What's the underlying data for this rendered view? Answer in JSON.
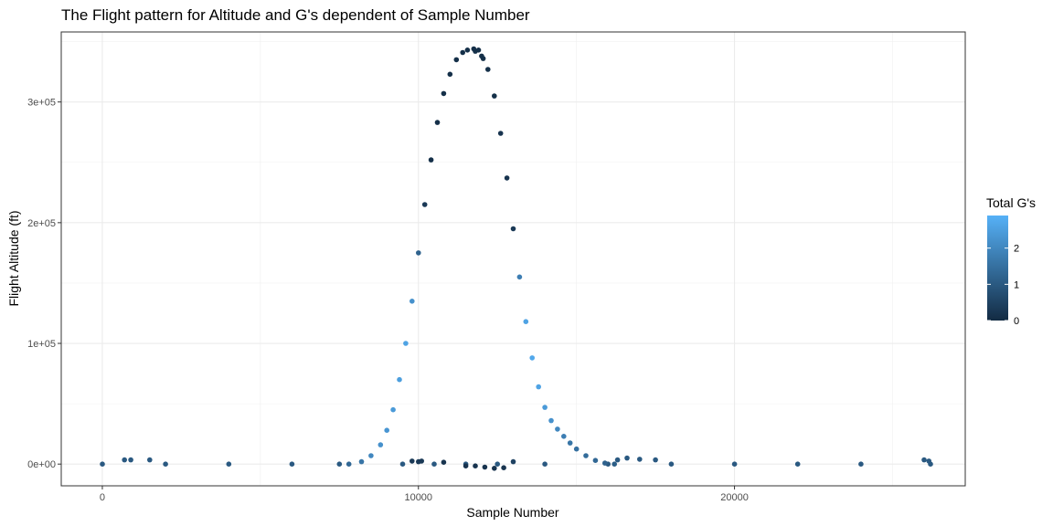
{
  "chart_data": {
    "type": "scatter",
    "title": "The Flight pattern for Altitude and G's dependent of Sample Number",
    "xlabel": "Sample Number",
    "ylabel": "Flight Altitude (ft)",
    "xlim": [
      -1300,
      27300
    ],
    "ylim": [
      -18000,
      358000
    ],
    "x_ticks": [
      0,
      10000,
      20000
    ],
    "x_tick_labels": [
      "0",
      "10000",
      "20000"
    ],
    "y_ticks": [
      0,
      100000,
      200000,
      300000
    ],
    "y_tick_labels": [
      "0e+00",
      "1e+05",
      "2e+05",
      "3e+05"
    ],
    "grid": true,
    "legend": {
      "title": "Total G's",
      "position": "right",
      "breaks": [
        0,
        1,
        2
      ],
      "break_labels": [
        "0",
        "1",
        "2"
      ],
      "range": [
        0,
        2.9
      ],
      "color_low": "#132b43",
      "color_high": "#56b1f7"
    },
    "series": [
      {
        "description": "ground",
        "x": [
          0,
          2000,
          4000,
          6000,
          7500,
          9500,
          10500,
          11500,
          12500,
          14000,
          16000,
          18000,
          20000,
          22000,
          24000,
          26200
        ],
        "y": [
          0,
          0,
          0,
          0,
          0,
          0,
          0,
          0,
          0,
          0,
          0,
          0,
          0,
          0,
          0,
          0
        ],
        "g": [
          1,
          1,
          1,
          1,
          1,
          1,
          1,
          1,
          1,
          1,
          1,
          1,
          1,
          1,
          1,
          1
        ]
      },
      {
        "description": "ascent",
        "x": [
          7800,
          8200,
          8500,
          8800,
          9000,
          9200,
          9400,
          9600,
          9800,
          10000,
          10200,
          10400,
          10600,
          10800,
          11000,
          11200,
          11400,
          11550
        ],
        "y": [
          0,
          2000,
          7000,
          16000,
          28000,
          45000,
          70000,
          100000,
          135000,
          175000,
          215000,
          252000,
          283000,
          307000,
          323000,
          335000,
          341000,
          343000
        ],
        "g": [
          1.3,
          1.6,
          2.0,
          2.2,
          2.3,
          2.4,
          2.5,
          2.6,
          2.2,
          1.2,
          0.3,
          0.1,
          0.1,
          0.1,
          0.1,
          0.1,
          0.1,
          0.1
        ]
      },
      {
        "description": "descent",
        "x": [
          11800,
          12000,
          12200,
          12400,
          12600,
          12800,
          13000,
          13200,
          13400,
          13600,
          13800,
          14000,
          14200,
          14400,
          14600,
          14800,
          15000,
          15300,
          15600,
          15900,
          16200
        ],
        "y": [
          342000,
          338000,
          327000,
          305000,
          274000,
          237000,
          195000,
          155000,
          118000,
          88000,
          64000,
          47000,
          36000,
          29000,
          23000,
          17500,
          12500,
          7000,
          3000,
          800,
          0
        ],
        "g": [
          0.1,
          0.1,
          0.1,
          0.1,
          0.2,
          0.2,
          0.3,
          1.8,
          2.6,
          2.7,
          2.6,
          2.4,
          2.2,
          2.0,
          1.8,
          1.6,
          1.5,
          1.4,
          1.3,
          1.2,
          1.1
        ]
      },
      {
        "description": "low scatter",
        "x": [
          700,
          900,
          1500,
          9800,
          10000,
          10100,
          10800,
          11500,
          11800,
          12100,
          12400,
          12700,
          13000,
          16300,
          16600,
          17000,
          17500,
          26000,
          26150
        ],
        "y": [
          3500,
          3500,
          3500,
          2500,
          2000,
          2500,
          1500,
          -1500,
          -1500,
          -2500,
          -3500,
          -3000,
          2000,
          3500,
          5000,
          4000,
          3500,
          3500,
          2500
        ],
        "g": [
          1,
          1,
          1,
          0.3,
          0.3,
          0.3,
          0.2,
          0.2,
          0.2,
          0.2,
          0.2,
          0.2,
          0.5,
          1,
          1,
          1,
          1,
          1,
          1
        ]
      },
      {
        "description": "high scatter",
        "x": [
          11750,
          11900,
          12050
        ],
        "y": [
          344000,
          343000,
          336000
        ],
        "g": [
          0.1,
          0.1,
          0.1
        ]
      }
    ]
  }
}
